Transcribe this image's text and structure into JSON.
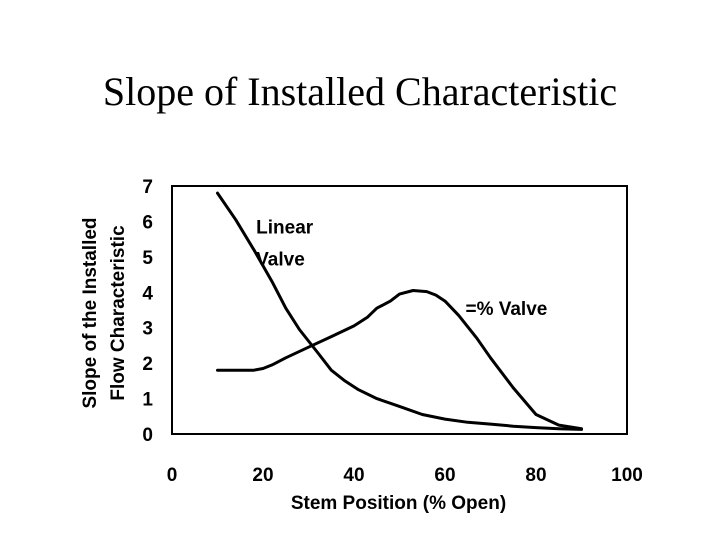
{
  "slide": {
    "title": "Slope of Installed Characteristic"
  },
  "chart_data": {
    "type": "line",
    "title": "Slope of Installed Characteristic",
    "xlabel": "Stem Position (% Open)",
    "ylabel": [
      "Slope of the Installed",
      "Flow Characteristic"
    ],
    "xlim": [
      0,
      100
    ],
    "ylim": [
      0,
      7
    ],
    "xticks": [
      0,
      20,
      40,
      60,
      80,
      100
    ],
    "yticks": [
      0,
      1,
      2,
      3,
      4,
      5,
      6,
      7
    ],
    "grid": false,
    "line_color": "#000000",
    "series": [
      {
        "name": "Linear Valve",
        "label_lines": [
          "Linear",
          "Valve"
        ],
        "x": [
          10,
          14,
          18,
          22,
          25,
          28,
          32,
          35,
          38,
          41,
          45,
          50,
          55,
          60,
          65,
          70,
          75,
          80,
          85,
          90
        ],
        "y": [
          6.8,
          6.05,
          5.2,
          4.3,
          3.55,
          2.95,
          2.3,
          1.8,
          1.5,
          1.25,
          1.0,
          0.78,
          0.55,
          0.42,
          0.33,
          0.28,
          0.22,
          0.18,
          0.15,
          0.13
        ]
      },
      {
        "name": "=% Valve",
        "label_lines": [
          "=% Valve"
        ],
        "x": [
          10,
          15,
          18,
          20,
          22,
          25,
          30,
          35,
          40,
          43,
          45,
          48,
          50,
          53,
          56,
          58,
          60,
          63,
          67,
          70,
          75,
          80,
          85,
          90
        ],
        "y": [
          1.8,
          1.8,
          1.8,
          1.85,
          1.95,
          2.15,
          2.45,
          2.75,
          3.05,
          3.3,
          3.55,
          3.75,
          3.95,
          4.05,
          4.02,
          3.92,
          3.75,
          3.35,
          2.7,
          2.15,
          1.3,
          0.55,
          0.25,
          0.15
        ]
      }
    ]
  }
}
